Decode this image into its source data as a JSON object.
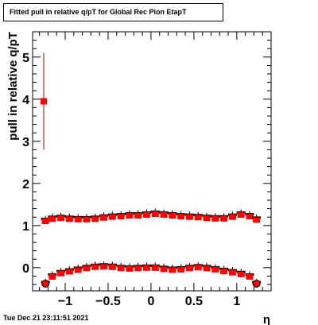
{
  "title": "Fitted pull in relative q/pT for Global Rec Pion EtapT",
  "timestamp": "Tue Dec 21 23:11:51 2021",
  "chart_data": {
    "type": "scatter",
    "title": "Fitted pull in relative q/pT for Global Rec Pion EtapT",
    "xlabel": "η",
    "ylabel": "pull in relative q/pT",
    "xlim": [
      -1.38,
      1.4
    ],
    "ylim": [
      -0.55,
      5.6
    ],
    "xticks": [
      {
        "value": -1,
        "label": "−1"
      },
      {
        "value": -0.5,
        "label": "−0.5"
      },
      {
        "value": 0,
        "label": "0"
      },
      {
        "value": 0.5,
        "label": "0.5"
      },
      {
        "value": 1,
        "label": "1"
      }
    ],
    "yticks": [
      {
        "value": 0,
        "label": "0"
      },
      {
        "value": 1,
        "label": "1"
      },
      {
        "value": 2,
        "label": "2"
      },
      {
        "value": 3,
        "label": "3"
      },
      {
        "value": 4,
        "label": "4"
      },
      {
        "value": 5,
        "label": "5"
      }
    ],
    "grid": false,
    "marker_color": "#ff0000",
    "error_color": "#000000",
    "outlier": {
      "x": -1.25,
      "y": 3.95,
      "yerr": 1.15,
      "color": "#ff0000",
      "error_color": "#aa0000"
    },
    "series": [
      {
        "x": [
          -1.23,
          -1.15,
          -1.05,
          -0.95,
          -0.85,
          -0.75,
          -0.65,
          -0.55,
          -0.45,
          -0.35,
          -0.25,
          -0.15,
          -0.05,
          0.05,
          0.15,
          0.25,
          0.35,
          0.45,
          0.55,
          0.65,
          0.75,
          0.85,
          0.95,
          1.05,
          1.15,
          1.23
        ],
        "y": [
          1.12,
          1.17,
          1.19,
          1.17,
          1.16,
          1.16,
          1.17,
          1.2,
          1.22,
          1.23,
          1.25,
          1.25,
          1.27,
          1.29,
          1.27,
          1.25,
          1.23,
          1.22,
          1.21,
          1.19,
          1.18,
          1.18,
          1.22,
          1.27,
          1.23,
          1.15
        ]
      },
      {
        "x": [
          -1.23,
          -1.15,
          -1.05,
          -0.95,
          -0.85,
          -0.75,
          -0.65,
          -0.55,
          -0.45,
          -0.35,
          -0.25,
          -0.15,
          -0.05,
          0.05,
          0.15,
          0.25,
          0.35,
          0.45,
          0.55,
          0.65,
          0.75,
          0.85,
          0.95,
          1.05,
          1.15,
          1.23
        ],
        "y": [
          -0.38,
          -0.2,
          -0.12,
          -0.08,
          -0.04,
          0.0,
          0.03,
          0.04,
          0.03,
          0.0,
          -0.01,
          0.0,
          0.01,
          0.01,
          -0.02,
          -0.04,
          -0.03,
          0.0,
          0.02,
          0.0,
          -0.03,
          -0.07,
          -0.1,
          -0.14,
          -0.2,
          -0.38
        ]
      }
    ]
  }
}
